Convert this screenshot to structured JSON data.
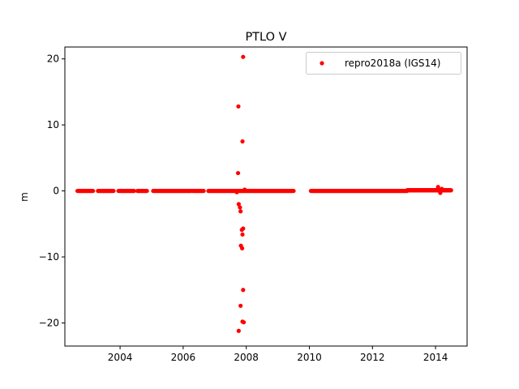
{
  "chart_data": {
    "type": "scatter",
    "title": "PTLO V",
    "xlabel": "",
    "ylabel": "m",
    "xlim": [
      2002.25,
      2015.0
    ],
    "ylim": [
      -23.5,
      21.8
    ],
    "xticks": [
      2004,
      2006,
      2008,
      2010,
      2012,
      2014
    ],
    "xtick_labels": [
      "2004",
      "2006",
      "2008",
      "2010",
      "2012",
      "2014"
    ],
    "yticks": [
      -20,
      -10,
      0,
      10,
      20
    ],
    "ytick_labels": [
      "−20",
      "−10",
      "0",
      "10",
      "20"
    ],
    "grid": false,
    "legend": {
      "placement": "top-right"
    },
    "series": [
      {
        "name": "repro2018a (IGS14)",
        "color": "#ff0000",
        "marker": "circle",
        "segments": [
          [
            2002.65,
            2003.15,
            0.0
          ],
          [
            2003.3,
            2003.8,
            0.0
          ],
          [
            2003.95,
            2004.45,
            0.0
          ],
          [
            2004.55,
            2004.85,
            0.0
          ],
          [
            2005.05,
            2006.25,
            0.0
          ],
          [
            2006.3,
            2006.65,
            0.0
          ],
          [
            2006.8,
            2009.5,
            0.0
          ],
          [
            2010.05,
            2013.1,
            0.0
          ],
          [
            2013.1,
            2014.5,
            0.1
          ]
        ],
        "points": [
          {
            "x": 2007.9,
            "y": 20.3
          },
          {
            "x": 2007.75,
            "y": 12.8
          },
          {
            "x": 2007.88,
            "y": 7.5
          },
          {
            "x": 2007.74,
            "y": 2.7
          },
          {
            "x": 2007.76,
            "y": -2.0
          },
          {
            "x": 2007.8,
            "y": -2.5
          },
          {
            "x": 2007.82,
            "y": -3.1
          },
          {
            "x": 2007.9,
            "y": -5.7
          },
          {
            "x": 2007.86,
            "y": -5.9
          },
          {
            "x": 2007.88,
            "y": -6.6
          },
          {
            "x": 2007.83,
            "y": -8.3
          },
          {
            "x": 2007.87,
            "y": -8.7
          },
          {
            "x": 2007.9,
            "y": -15.0
          },
          {
            "x": 2007.82,
            "y": -17.4
          },
          {
            "x": 2007.88,
            "y": -19.8
          },
          {
            "x": 2007.92,
            "y": -19.9
          },
          {
            "x": 2007.76,
            "y": -21.2
          },
          {
            "x": 2014.08,
            "y": 0.6
          },
          {
            "x": 2014.15,
            "y": -0.3
          },
          {
            "x": 2014.2,
            "y": 0.3
          },
          {
            "x": 2007.7,
            "y": -0.2
          },
          {
            "x": 2007.95,
            "y": 0.2
          }
        ]
      }
    ]
  }
}
